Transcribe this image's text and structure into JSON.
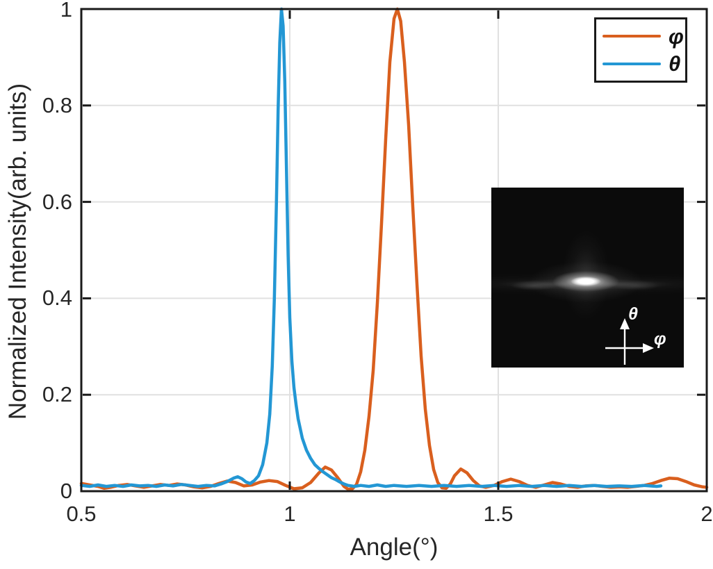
{
  "chart_data": {
    "type": "line",
    "title": "",
    "xlabel": "Angle(°)",
    "ylabel": "Normalized Intensity(arb. units)",
    "xlim": [
      0.5,
      2
    ],
    "ylim": [
      0,
      1
    ],
    "xticks": [
      0.5,
      1,
      1.5,
      2
    ],
    "xtick_labels": [
      "0.5",
      "1",
      "1.5",
      "2"
    ],
    "yticks": [
      0,
      0.2,
      0.4,
      0.6,
      0.8,
      1
    ],
    "ytick_labels": [
      "0",
      "0.2",
      "0.4",
      "0.6",
      "0.8",
      "1"
    ],
    "grid": true,
    "grid_color": "#e0e0e0",
    "axis_color": "#1a1a1a",
    "legend_position": "top-right",
    "series": [
      {
        "name": "φ",
        "color": "#D95F1E",
        "points": [
          [
            0.5,
            0.016
          ],
          [
            0.52,
            0.013
          ],
          [
            0.54,
            0.01
          ],
          [
            0.555,
            0.006
          ],
          [
            0.57,
            0.008
          ],
          [
            0.59,
            0.012
          ],
          [
            0.61,
            0.014
          ],
          [
            0.63,
            0.011
          ],
          [
            0.65,
            0.008
          ],
          [
            0.67,
            0.011
          ],
          [
            0.69,
            0.014
          ],
          [
            0.71,
            0.012
          ],
          [
            0.73,
            0.015
          ],
          [
            0.75,
            0.013
          ],
          [
            0.77,
            0.009
          ],
          [
            0.79,
            0.007
          ],
          [
            0.81,
            0.01
          ],
          [
            0.83,
            0.016
          ],
          [
            0.85,
            0.021
          ],
          [
            0.87,
            0.018
          ],
          [
            0.89,
            0.011
          ],
          [
            0.91,
            0.013
          ],
          [
            0.93,
            0.019
          ],
          [
            0.95,
            0.022
          ],
          [
            0.97,
            0.02
          ],
          [
            0.99,
            0.012
          ],
          [
            1.01,
            0.005
          ],
          [
            1.03,
            0.007
          ],
          [
            1.05,
            0.018
          ],
          [
            1.07,
            0.038
          ],
          [
            1.085,
            0.05
          ],
          [
            1.1,
            0.044
          ],
          [
            1.115,
            0.028
          ],
          [
            1.13,
            0.01
          ],
          [
            1.14,
            0.004
          ],
          [
            1.15,
            0.005
          ],
          [
            1.16,
            0.014
          ],
          [
            1.17,
            0.04
          ],
          [
            1.18,
            0.085
          ],
          [
            1.19,
            0.155
          ],
          [
            1.2,
            0.25
          ],
          [
            1.21,
            0.39
          ],
          [
            1.22,
            0.555
          ],
          [
            1.23,
            0.73
          ],
          [
            1.24,
            0.89
          ],
          [
            1.25,
            0.98
          ],
          [
            1.258,
            1.0
          ],
          [
            1.266,
            0.975
          ],
          [
            1.275,
            0.89
          ],
          [
            1.285,
            0.76
          ],
          [
            1.295,
            0.59
          ],
          [
            1.305,
            0.43
          ],
          [
            1.315,
            0.28
          ],
          [
            1.325,
            0.17
          ],
          [
            1.335,
            0.095
          ],
          [
            1.345,
            0.045
          ],
          [
            1.355,
            0.018
          ],
          [
            1.365,
            0.007
          ],
          [
            1.375,
            0.006
          ],
          [
            1.385,
            0.015
          ],
          [
            1.395,
            0.032
          ],
          [
            1.41,
            0.046
          ],
          [
            1.425,
            0.038
          ],
          [
            1.44,
            0.022
          ],
          [
            1.455,
            0.011
          ],
          [
            1.47,
            0.008
          ],
          [
            1.49,
            0.012
          ],
          [
            1.51,
            0.02
          ],
          [
            1.53,
            0.025
          ],
          [
            1.55,
            0.02
          ],
          [
            1.57,
            0.012
          ],
          [
            1.59,
            0.008
          ],
          [
            1.61,
            0.013
          ],
          [
            1.63,
            0.018
          ],
          [
            1.65,
            0.015
          ],
          [
            1.67,
            0.01
          ],
          [
            1.69,
            0.008
          ],
          [
            1.71,
            0.011
          ],
          [
            1.73,
            0.012
          ],
          [
            1.75,
            0.01
          ],
          [
            1.77,
            0.008
          ],
          [
            1.79,
            0.009
          ],
          [
            1.81,
            0.008
          ],
          [
            1.83,
            0.01
          ],
          [
            1.85,
            0.012
          ],
          [
            1.87,
            0.016
          ],
          [
            1.89,
            0.022
          ],
          [
            1.91,
            0.027
          ],
          [
            1.93,
            0.026
          ],
          [
            1.95,
            0.02
          ],
          [
            1.97,
            0.013
          ],
          [
            1.99,
            0.009
          ],
          [
            2.0,
            0.008
          ]
        ]
      },
      {
        "name": "θ",
        "color": "#2397D4",
        "points": [
          [
            0.5,
            0.012
          ],
          [
            0.52,
            0.01
          ],
          [
            0.54,
            0.013
          ],
          [
            0.56,
            0.01
          ],
          [
            0.58,
            0.012
          ],
          [
            0.6,
            0.01
          ],
          [
            0.62,
            0.013
          ],
          [
            0.64,
            0.011
          ],
          [
            0.66,
            0.012
          ],
          [
            0.68,
            0.01
          ],
          [
            0.7,
            0.013
          ],
          [
            0.72,
            0.011
          ],
          [
            0.74,
            0.014
          ],
          [
            0.76,
            0.012
          ],
          [
            0.78,
            0.01
          ],
          [
            0.8,
            0.012
          ],
          [
            0.82,
            0.011
          ],
          [
            0.835,
            0.015
          ],
          [
            0.85,
            0.02
          ],
          [
            0.865,
            0.027
          ],
          [
            0.875,
            0.03
          ],
          [
            0.885,
            0.026
          ],
          [
            0.895,
            0.019
          ],
          [
            0.905,
            0.016
          ],
          [
            0.915,
            0.022
          ],
          [
            0.925,
            0.032
          ],
          [
            0.935,
            0.055
          ],
          [
            0.945,
            0.1
          ],
          [
            0.952,
            0.16
          ],
          [
            0.958,
            0.26
          ],
          [
            0.963,
            0.4
          ],
          [
            0.968,
            0.6
          ],
          [
            0.972,
            0.79
          ],
          [
            0.976,
            0.93
          ],
          [
            0.98,
            1.0
          ],
          [
            0.984,
            0.965
          ],
          [
            0.988,
            0.85
          ],
          [
            0.992,
            0.67
          ],
          [
            0.996,
            0.49
          ],
          [
            1.0,
            0.36
          ],
          [
            1.005,
            0.27
          ],
          [
            1.01,
            0.215
          ],
          [
            1.015,
            0.18
          ],
          [
            1.02,
            0.15
          ],
          [
            1.03,
            0.11
          ],
          [
            1.04,
            0.085
          ],
          [
            1.05,
            0.068
          ],
          [
            1.06,
            0.055
          ],
          [
            1.07,
            0.047
          ],
          [
            1.08,
            0.04
          ],
          [
            1.09,
            0.034
          ],
          [
            1.1,
            0.028
          ],
          [
            1.11,
            0.024
          ],
          [
            1.12,
            0.019
          ],
          [
            1.13,
            0.015
          ],
          [
            1.14,
            0.012
          ],
          [
            1.155,
            0.01
          ],
          [
            1.17,
            0.012
          ],
          [
            1.19,
            0.01
          ],
          [
            1.21,
            0.013
          ],
          [
            1.23,
            0.01
          ],
          [
            1.25,
            0.012
          ],
          [
            1.28,
            0.01
          ],
          [
            1.31,
            0.012
          ],
          [
            1.34,
            0.01
          ],
          [
            1.37,
            0.012
          ],
          [
            1.4,
            0.01
          ],
          [
            1.43,
            0.012
          ],
          [
            1.46,
            0.01
          ],
          [
            1.49,
            0.012
          ],
          [
            1.52,
            0.01
          ],
          [
            1.55,
            0.012
          ],
          [
            1.58,
            0.01
          ],
          [
            1.61,
            0.012
          ],
          [
            1.64,
            0.01
          ],
          [
            1.67,
            0.012
          ],
          [
            1.7,
            0.01
          ],
          [
            1.73,
            0.012
          ],
          [
            1.76,
            0.01
          ],
          [
            1.79,
            0.011
          ],
          [
            1.82,
            0.01
          ],
          [
            1.85,
            0.012
          ],
          [
            1.88,
            0.01
          ],
          [
            1.89,
            0.011
          ]
        ]
      }
    ]
  },
  "inset": {
    "theta_label": "θ",
    "phi_label": "φ",
    "background": "#0b0b0b",
    "arrow_color": "#ffffff"
  }
}
